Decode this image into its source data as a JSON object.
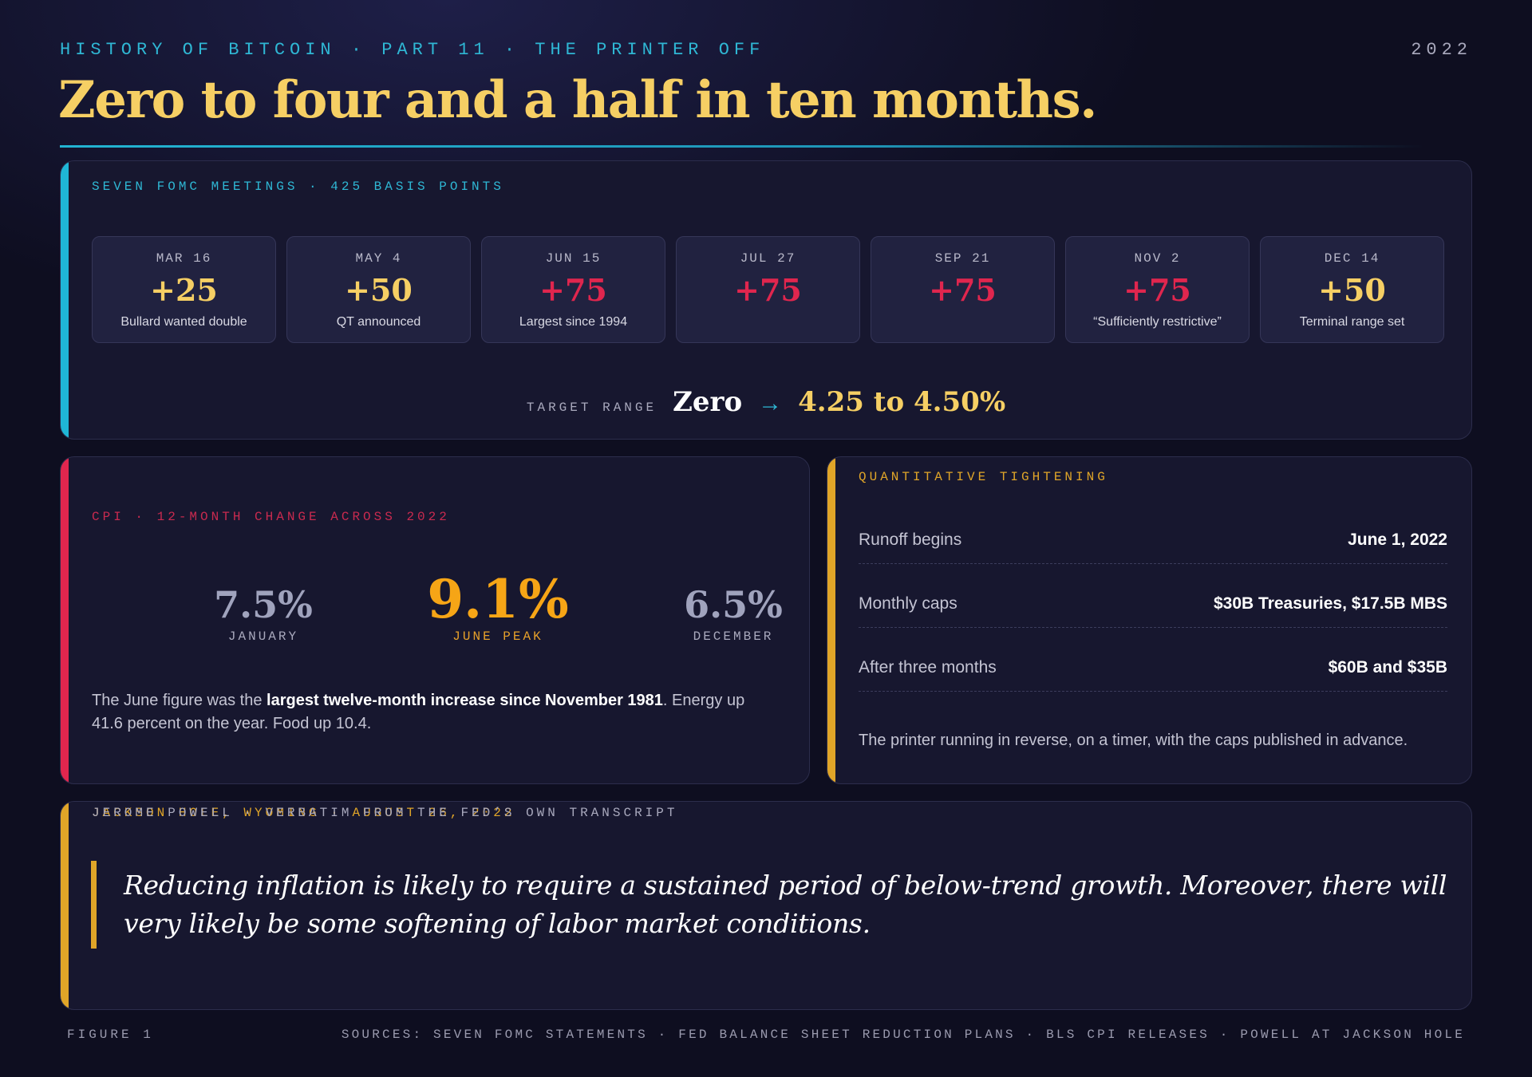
{
  "header": {
    "kicker": "HISTORY OF BITCOIN · PART 11 · THE PRINTER OFF",
    "year": "2022",
    "headline": "Zero to four and a half in ten months."
  },
  "fomc": {
    "label": "SEVEN FOMC MEETINGS · 425 BASIS POINTS",
    "meetings": [
      {
        "date": "MAR 16",
        "delta": "+25",
        "note": "Bullard wanted double",
        "color": "#f6cf64"
      },
      {
        "date": "MAY 4",
        "delta": "+50",
        "note": "QT announced",
        "color": "#f6cf64"
      },
      {
        "date": "JUN 15",
        "delta": "+75",
        "note": "Largest since 1994",
        "color": "#e0264e"
      },
      {
        "date": "JUL 27",
        "delta": "+75",
        "note": "",
        "color": "#e0264e"
      },
      {
        "date": "SEP 21",
        "delta": "+75",
        "note": "",
        "color": "#e0264e"
      },
      {
        "date": "NOV 2",
        "delta": "+75",
        "note": "“Sufficiently restrictive”",
        "color": "#e0264e"
      },
      {
        "date": "DEC 14",
        "delta": "+50",
        "note": "Terminal range set",
        "color": "#f6cf64"
      }
    ],
    "target_label": "TARGET RANGE",
    "target_from": "Zero",
    "target_arrow": "→",
    "target_to": "4.25 to 4.50%"
  },
  "cpi": {
    "label": "CPI · 12-MONTH CHANGE ACROSS 2022",
    "january": {
      "value": "7.5%",
      "caption": "JANUARY"
    },
    "june": {
      "value": "9.1%",
      "caption": "JUNE PEAK"
    },
    "december": {
      "value": "6.5%",
      "caption": "DECEMBER"
    },
    "text_pre": "The June figure was the ",
    "text_bold": "largest twelve-month increase since November 1981",
    "text_post": ". Energy up 41.6 percent on the year. Food up 10.4."
  },
  "qt": {
    "label": "QUANTITATIVE TIGHTENING",
    "rows": [
      {
        "key": "Runoff begins",
        "value": "June 1, 2022"
      },
      {
        "key": "Monthly caps",
        "value": "$30B Treasuries, $17.5B MBS"
      },
      {
        "key": "After three months",
        "value": "$60B and $35B"
      }
    ],
    "text": "The printer running in reverse, on a timer, with the caps published in advance."
  },
  "quote": {
    "label": "JACKSON HOLE, WYOMING · AUGUST 26, 2022",
    "text": "Reducing inflation is likely to require a sustained period of below-trend growth. Moreover, there will very likely be some softening of labor market conditions.",
    "attribution": "JEROME POWELL · VERBATIM FROM THE FED’S OWN TRANSCRIPT"
  },
  "footer": {
    "figure": "FIGURE 1",
    "sources": "SOURCES: SEVEN FOMC STATEMENTS · FED BALANCE SHEET REDUCTION PLANS · BLS CPI RELEASES · POWELL AT JACKSON HOLE"
  },
  "colors": {
    "teal": "#1fb6d6",
    "gold": "#f6cf64",
    "red": "#e0264e",
    "amber": "#e0a528",
    "orange": "#f6a516"
  }
}
